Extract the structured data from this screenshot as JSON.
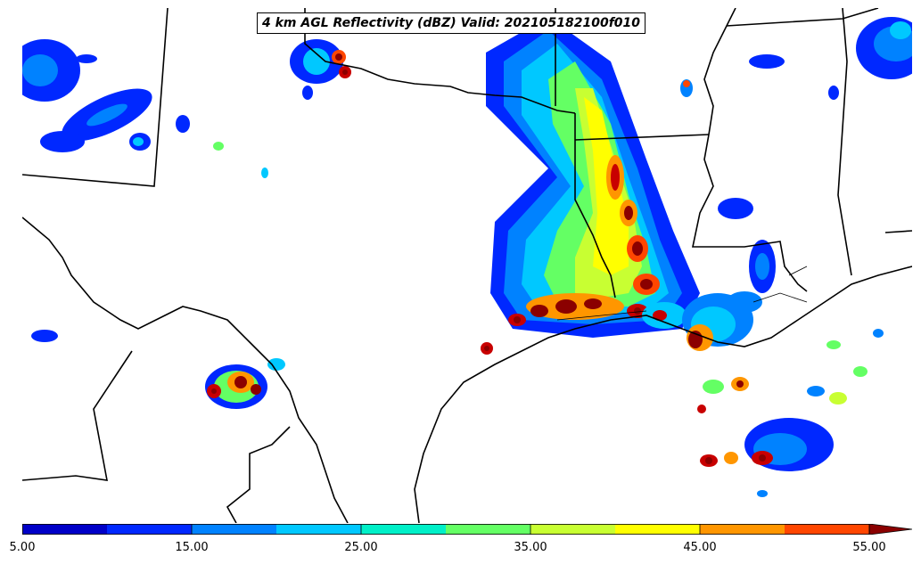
{
  "title": "4 km AGL Reflectivity (dBZ) Valid: 202105182100f010",
  "colorbar": {
    "units": "dBZ",
    "ticks": [
      "5.00",
      "15.00",
      "25.00",
      "35.00",
      "45.00",
      "55.00"
    ],
    "min": 5,
    "max": 55,
    "interval": 5,
    "extend": "max",
    "colors": [
      "#0000c8",
      "#0028ff",
      "#0082ff",
      "#00c8ff",
      "#00f0c8",
      "#64ff64",
      "#c8ff32",
      "#ffff00",
      "#ff9600",
      "#ff4600",
      "#c80000",
      "#8b0000"
    ]
  },
  "map": {
    "region": "Texas and Gulf Coast",
    "boundaries": [
      "state",
      "county",
      "coastline",
      "international"
    ]
  }
}
